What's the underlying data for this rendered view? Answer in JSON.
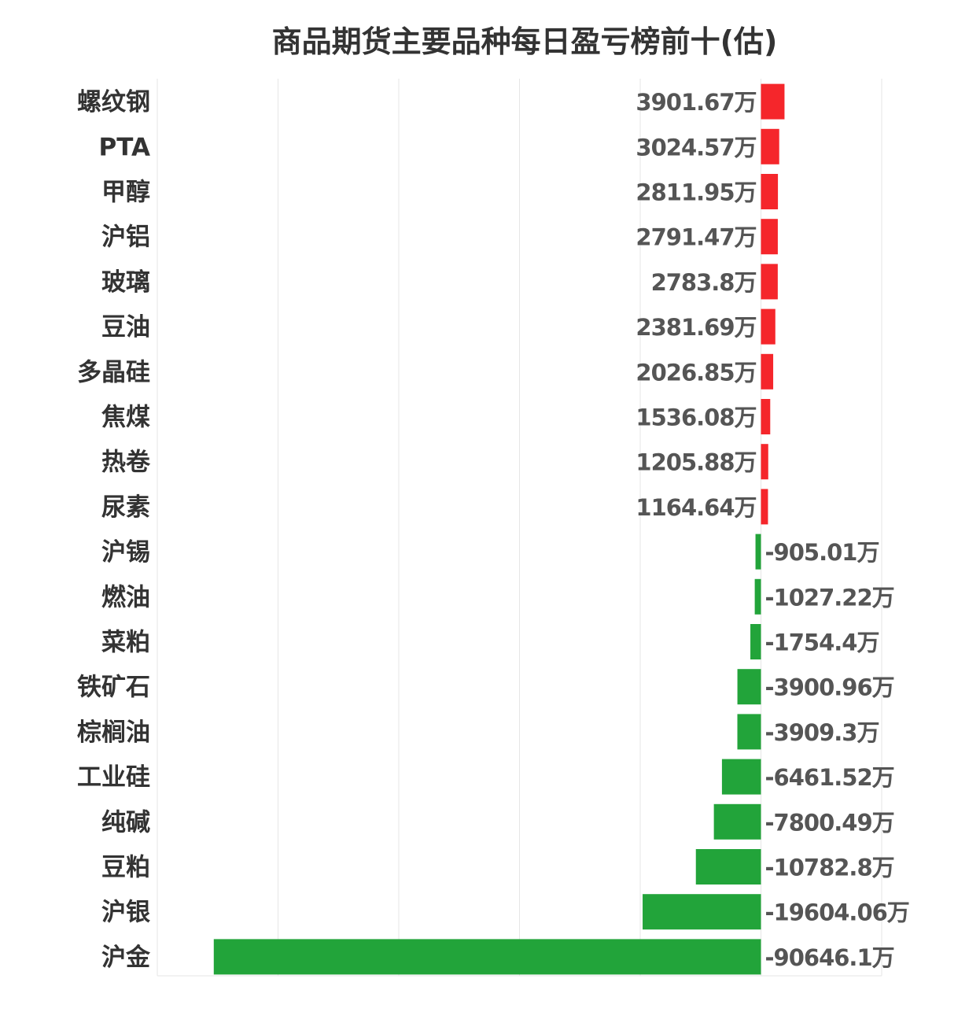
{
  "chart_data": {
    "type": "bar",
    "orientation": "horizontal",
    "title": "商品期货主要品种每日盈亏榜前十(估)",
    "unit": "万",
    "categories": [
      "螺纹钢",
      "PTA",
      "甲醇",
      "沪铝",
      "玻璃",
      "豆油",
      "多晶硅",
      "焦煤",
      "热卷",
      "尿素",
      "沪锡",
      "燃油",
      "菜粕",
      "铁矿石",
      "棕榈油",
      "工业硅",
      "纯碱",
      "豆粕",
      "沪银",
      "沪金"
    ],
    "values": [
      3901.67,
      3024.57,
      2811.95,
      2791.47,
      2783.8,
      2381.69,
      2026.85,
      1536.08,
      1205.88,
      1164.64,
      -905.01,
      -1027.22,
      -1754.4,
      -3900.96,
      -3909.3,
      -6461.52,
      -7800.49,
      -10782.8,
      -19604.06,
      -90646.1
    ],
    "value_labels": [
      "3901.67万",
      "3024.57万",
      "2811.95万",
      "2791.47万",
      "2783.8万",
      "2381.69万",
      "2026.85万",
      "1536.08万",
      "1205.88万",
      "1164.64万",
      "-905.01万",
      "-1027.22万",
      "-1754.4万",
      "-3900.96万",
      "-3909.3万",
      "-6461.52万",
      "-7800.49万",
      "-10782.8万",
      "-19604.06万",
      "-90646.1万"
    ],
    "xlim": [
      -100000,
      20000
    ],
    "grid": true,
    "colors": {
      "positive": "#f5262b",
      "negative": "#22a43a",
      "grid": "#e6e6e6",
      "text": "#333333",
      "label": "#555555"
    }
  }
}
